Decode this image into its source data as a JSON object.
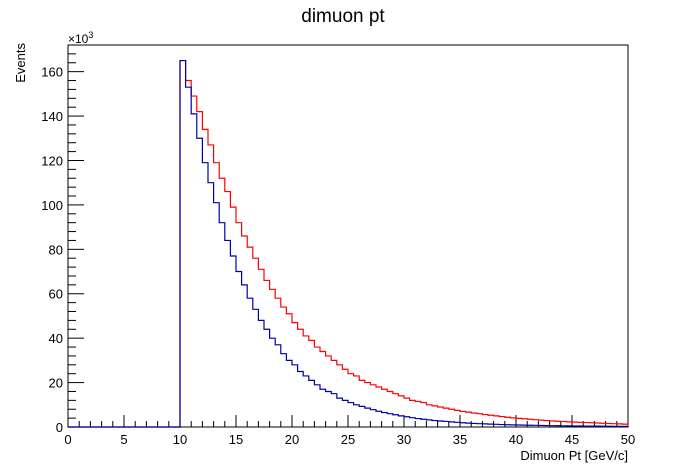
{
  "chart_data": {
    "type": "line",
    "title": "dimuon pt",
    "xlabel": "Dimuon Pt [GeV/c]",
    "ylabel": "Events",
    "y_multiplier_label": "×10",
    "y_multiplier_exponent": "3",
    "xlim": [
      0,
      50
    ],
    "ylim": [
      0,
      172
    ],
    "x_ticks": [
      0,
      5,
      10,
      15,
      20,
      25,
      30,
      35,
      40,
      45,
      50
    ],
    "y_ticks": [
      0,
      20,
      40,
      60,
      80,
      100,
      120,
      140,
      160
    ],
    "y_units_note": "values in thousands of events",
    "bin_width": 0.5,
    "grid": false,
    "style": "step histogram",
    "series": [
      {
        "color": "#ff0000",
        "bins_from": 10,
        "bins_to": 50,
        "values": [
          165,
          156,
          149,
          142,
          134,
          127,
          119,
          112,
          106,
          99,
          92,
          86,
          81,
          76,
          71,
          66,
          62,
          58,
          54,
          51,
          47,
          44,
          41,
          39,
          36,
          34,
          32,
          30,
          28,
          26,
          24,
          23,
          21,
          20,
          19,
          18,
          17,
          16,
          15,
          14,
          13,
          12,
          11.5,
          11,
          10,
          9.5,
          9,
          8.5,
          8,
          7.5,
          7,
          6.7,
          6.3,
          6,
          5.6,
          5.3,
          5,
          4.7,
          4.4,
          4.1,
          3.9,
          3.7,
          3.5,
          3.3,
          3.1,
          2.9,
          2.7,
          2.6,
          2.5,
          2.3,
          2.2,
          2.1,
          2,
          1.9,
          1.8,
          1.7,
          1.6,
          1.5,
          1.4,
          1.3
        ]
      },
      {
        "color": "#0000aa",
        "bins_from": 10,
        "bins_to": 50,
        "values": [
          165,
          153,
          141,
          130,
          119,
          110,
          101,
          92,
          84,
          77,
          70,
          64,
          58,
          53,
          48,
          44,
          40,
          37,
          33,
          30,
          28,
          25,
          23,
          21,
          19,
          17,
          16,
          15,
          13,
          12,
          11,
          10,
          9.3,
          8.5,
          7.8,
          7.1,
          6.5,
          6,
          5.5,
          5,
          4.6,
          4.2,
          3.8,
          3.5,
          3.2,
          2.9,
          2.7,
          2.5,
          2.3,
          2.1,
          1.9,
          1.75,
          1.6,
          1.5,
          1.4,
          1.3,
          1.2,
          1.1,
          1,
          0.95,
          0.9,
          0.85,
          0.8,
          0.75,
          0.7,
          0.65,
          0.6,
          0.57,
          0.54,
          0.51,
          0.48,
          0.45,
          0.42,
          0.4,
          0.38,
          0.36,
          0.34,
          0.32,
          0.3,
          0.28
        ]
      }
    ]
  }
}
